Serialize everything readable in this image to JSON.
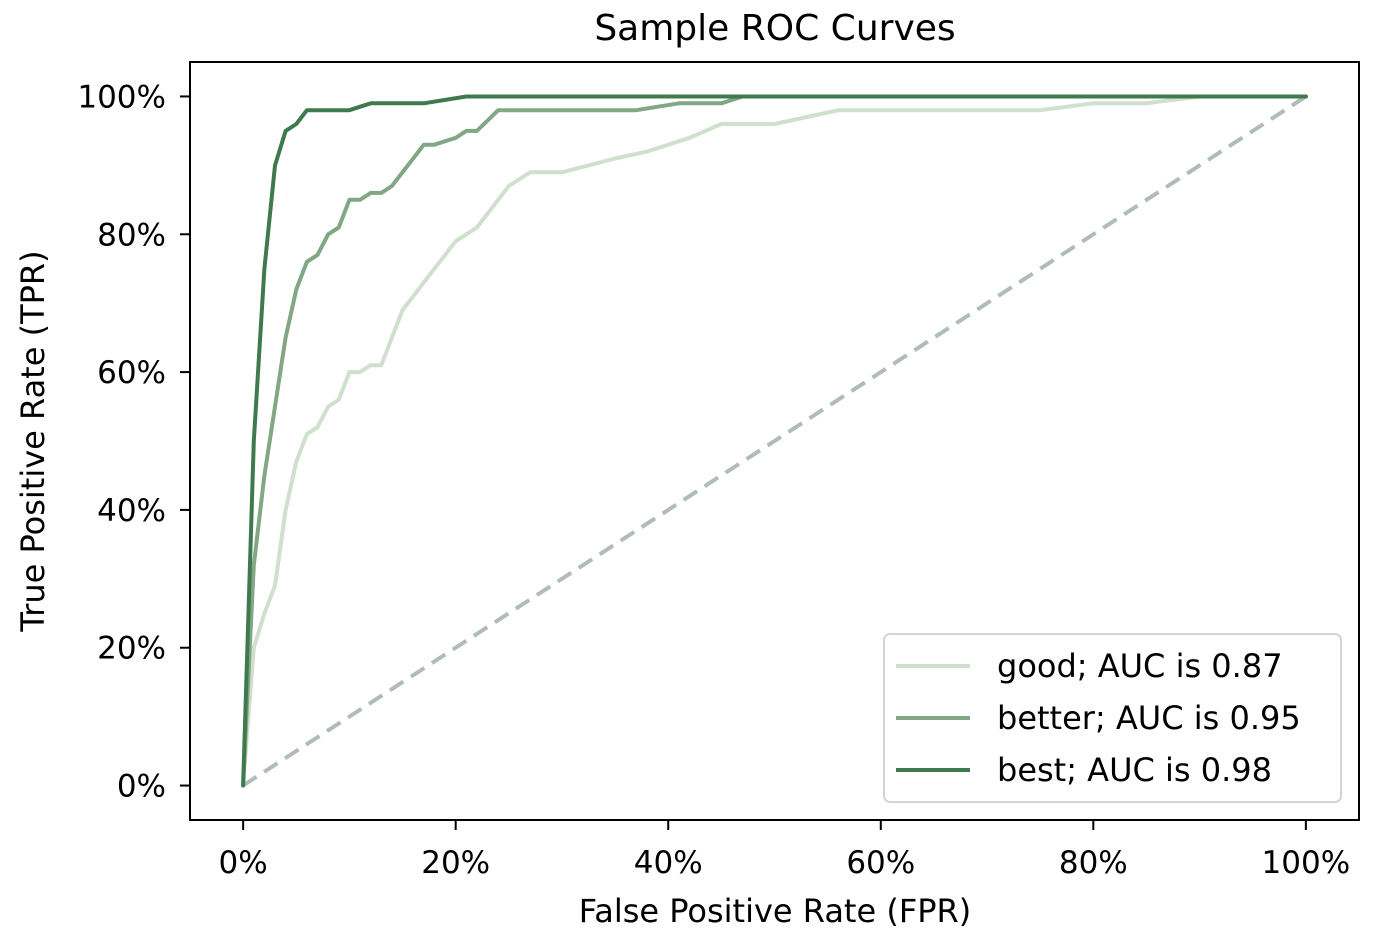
{
  "chart_data": {
    "type": "line",
    "title": "Sample ROC Curves",
    "xlabel": "False Positive Rate (FPR)",
    "ylabel": "True Positive Rate (TPR)",
    "xlim": [
      -0.05,
      1.05
    ],
    "ylim": [
      -0.05,
      1.05
    ],
    "xticks": [
      0,
      0.2,
      0.4,
      0.6,
      0.8,
      1.0
    ],
    "yticks": [
      0,
      0.2,
      0.4,
      0.6,
      0.8,
      1.0
    ],
    "xtick_labels": [
      "0%",
      "20%",
      "40%",
      "60%",
      "80%",
      "100%"
    ],
    "ytick_labels": [
      "0%",
      "20%",
      "40%",
      "60%",
      "80%",
      "100%"
    ],
    "grid": false,
    "legend_position": "lower-right",
    "series": [
      {
        "name": "good; AUC is 0.87",
        "color": "#cfe0cc",
        "style": "solid",
        "x": [
          0,
          0.01,
          0.02,
          0.03,
          0.04,
          0.05,
          0.06,
          0.07,
          0.08,
          0.09,
          0.1,
          0.11,
          0.12,
          0.13,
          0.14,
          0.15,
          0.16,
          0.17,
          0.18,
          0.2,
          0.21,
          0.22,
          0.23,
          0.24,
          0.25,
          0.27,
          0.3,
          0.35,
          0.38,
          0.42,
          0.45,
          0.5,
          0.56,
          0.6,
          0.7,
          0.75,
          0.8,
          0.85,
          0.9,
          1.0
        ],
        "y": [
          0,
          0.2,
          0.25,
          0.29,
          0.4,
          0.47,
          0.51,
          0.52,
          0.55,
          0.56,
          0.6,
          0.6,
          0.61,
          0.61,
          0.65,
          0.69,
          0.71,
          0.73,
          0.75,
          0.79,
          0.8,
          0.81,
          0.83,
          0.85,
          0.87,
          0.89,
          0.89,
          0.91,
          0.92,
          0.94,
          0.96,
          0.96,
          0.98,
          0.98,
          0.98,
          0.98,
          0.99,
          0.99,
          1.0,
          1.0
        ]
      },
      {
        "name": "better; AUC is 0.95",
        "color": "#81a784",
        "style": "solid",
        "x": [
          0,
          0.01,
          0.02,
          0.03,
          0.04,
          0.05,
          0.06,
          0.07,
          0.08,
          0.09,
          0.1,
          0.11,
          0.12,
          0.13,
          0.14,
          0.15,
          0.16,
          0.17,
          0.18,
          0.2,
          0.21,
          0.22,
          0.24,
          0.3,
          0.37,
          0.41,
          0.45,
          0.47,
          0.5,
          1.0
        ],
        "y": [
          0,
          0.32,
          0.45,
          0.55,
          0.65,
          0.72,
          0.76,
          0.77,
          0.8,
          0.81,
          0.85,
          0.85,
          0.86,
          0.86,
          0.87,
          0.89,
          0.91,
          0.93,
          0.93,
          0.94,
          0.95,
          0.95,
          0.98,
          0.98,
          0.98,
          0.99,
          0.99,
          1.0,
          1.0,
          1.0
        ]
      },
      {
        "name": "best; AUC is 0.98",
        "color": "#3f7a4e",
        "style": "solid",
        "x": [
          0,
          0.01,
          0.02,
          0.03,
          0.04,
          0.05,
          0.06,
          0.08,
          0.1,
          0.12,
          0.17,
          0.21,
          0.3,
          1.0
        ],
        "y": [
          0,
          0.5,
          0.75,
          0.9,
          0.95,
          0.96,
          0.98,
          0.98,
          0.98,
          0.99,
          0.99,
          1.0,
          1.0,
          1.0
        ]
      },
      {
        "color": "#afbdb6",
        "style": "dashed",
        "x": [
          0,
          1
        ],
        "y": [
          0,
          1
        ]
      }
    ]
  }
}
